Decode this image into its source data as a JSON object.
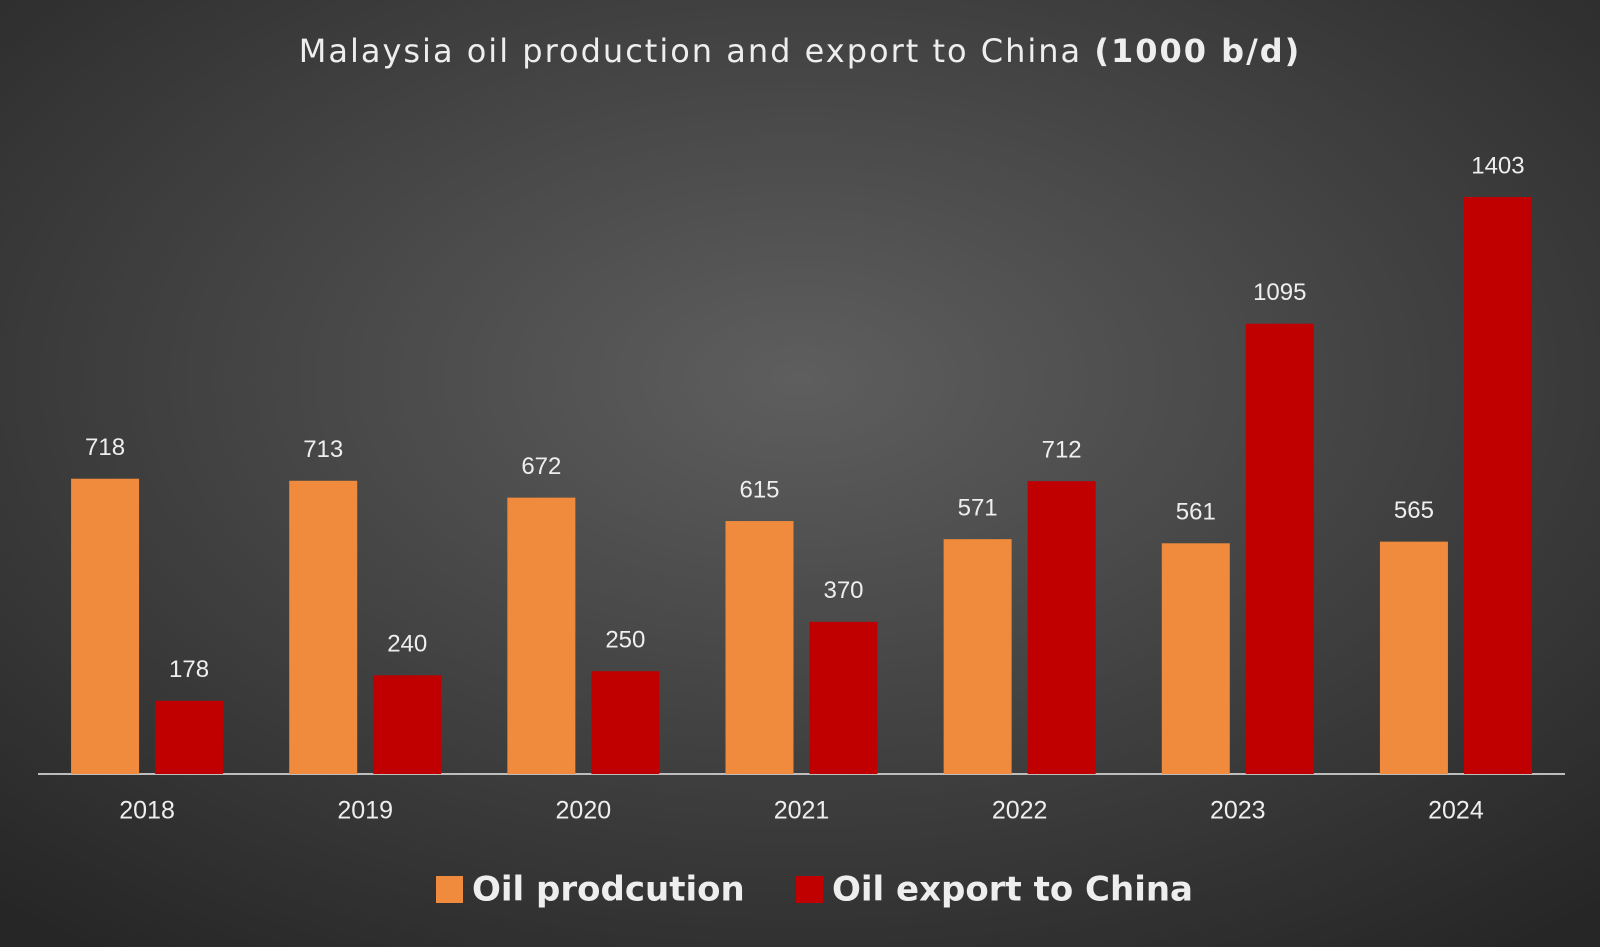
{
  "chart_data": {
    "type": "bar",
    "title": "Malaysia oil production  and export  to China",
    "title_unit": "(1000 b/d)",
    "categories": [
      "2018",
      "2019",
      "2020",
      "2021",
      "2022",
      "2023",
      "2024"
    ],
    "series": [
      {
        "name": "Oil prodcution",
        "color": "#f08a3c",
        "values": [
          718,
          713,
          672,
          615,
          571,
          561,
          565
        ]
      },
      {
        "name": "Oil export to China",
        "color": "#c00000",
        "values": [
          178,
          240,
          250,
          370,
          712,
          1095,
          1403
        ]
      }
    ]
  }
}
